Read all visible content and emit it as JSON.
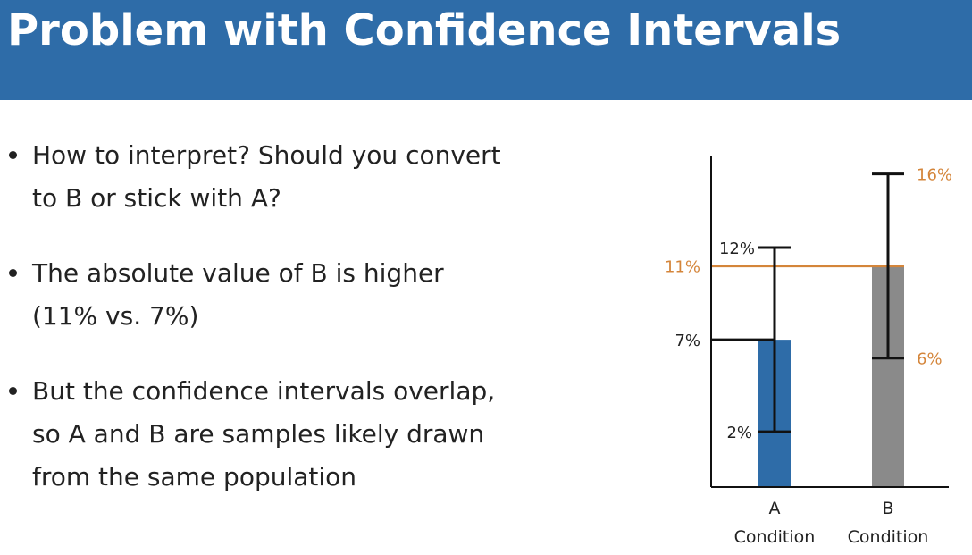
{
  "slide": {
    "title": "Problem with Confidence Intervals",
    "bullets": [
      {
        "line1": "How to interpret? Should you convert",
        "line2": "to B or stick with A?"
      },
      {
        "line1": "The absolute value of B is higher",
        "line2": "(11% vs. 7%)"
      },
      {
        "line1": "But the confidence intervals overlap,",
        "line2": "so A and B are samples likely drawn",
        "line3": "from the same population"
      }
    ]
  },
  "colors": {
    "header": "#2e6ca8",
    "bar_a": "#2e6ca8",
    "bar_b": "#8a8a8a",
    "highlight": "#d4853a",
    "ink": "#111111"
  },
  "chart_data": {
    "type": "bar",
    "categories": [
      "A\nCondition",
      "B\nCondition"
    ],
    "category_lines": [
      [
        "A",
        "Condition"
      ],
      [
        "B",
        "Condition"
      ]
    ],
    "values": [
      7,
      11
    ],
    "error_bars": [
      {
        "low": 2,
        "high": 12
      },
      {
        "low": 6,
        "high": 16
      }
    ],
    "value_labels": {
      "a_value": "7%",
      "a_low": "2%",
      "a_high": "12%",
      "b_value": "11%",
      "b_low": "6%",
      "b_high": "16%"
    },
    "reference_lines": [
      {
        "value": 7,
        "color": "#111111"
      },
      {
        "value": 11,
        "color": "#d4853a"
      }
    ],
    "ylim": [
      -1,
      17
    ],
    "xlabel": "",
    "ylabel": "",
    "grid": false
  }
}
